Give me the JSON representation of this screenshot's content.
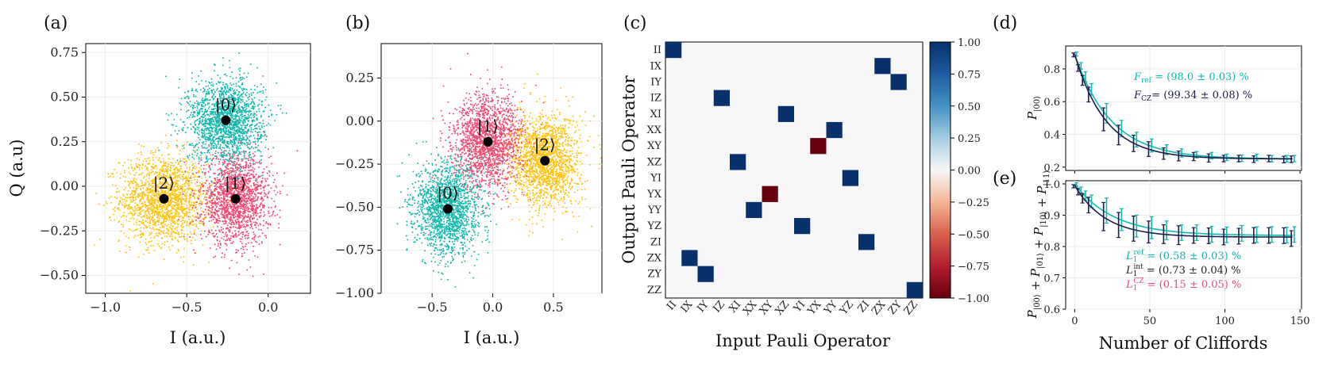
{
  "panel_labels": [
    "(a)",
    "(b)",
    "(c)",
    "(d)",
    "(e)"
  ],
  "colors": {
    "state0": "#12b8ad",
    "state1": "#ef4a72",
    "state2": "#ffc20e",
    "dark": "#1b1e4b",
    "cmap_pos": "#08306b",
    "cmap_neg": "#67000d",
    "cmap_mid": "#f7f7f7"
  },
  "chart_data": [
    {
      "id": "a",
      "type": "scatter",
      "title": "(a)",
      "xlabel": "I (a.u.)",
      "ylabel": "Q (a.u)",
      "xlim": [
        -1.12,
        0.26
      ],
      "ylim": [
        -0.6,
        0.8
      ],
      "xticks": [
        -1.0,
        -0.5,
        0.0
      ],
      "xtick_labels": [
        "−1.0",
        "−0.5",
        "0.0"
      ],
      "yticks": [
        -0.5,
        -0.25,
        0.0,
        0.25,
        0.5,
        0.75
      ],
      "ytick_labels": [
        "−0.50",
        "−0.25",
        "0.00",
        "0.25",
        "0.50",
        "0.75"
      ],
      "grid": true,
      "clusters": [
        {
          "state": "|2⟩",
          "cx": -0.64,
          "cy": -0.07,
          "sx": 0.14,
          "sy": 0.13,
          "color": "#ffc20e",
          "n": 1800
        },
        {
          "state": "|1⟩",
          "cx": -0.2,
          "cy": -0.07,
          "sx": 0.11,
          "sy": 0.13,
          "color": "#ef4a72",
          "n": 1800
        },
        {
          "state": "|0⟩",
          "cx": -0.26,
          "cy": 0.37,
          "sx": 0.12,
          "sy": 0.12,
          "color": "#12b8ad",
          "n": 1800
        }
      ],
      "centers": [
        {
          "label": "|0⟩",
          "x": -0.26,
          "y": 0.37
        },
        {
          "label": "|1⟩",
          "x": -0.2,
          "y": -0.07
        },
        {
          "label": "|2⟩",
          "x": -0.64,
          "y": -0.07
        }
      ]
    },
    {
      "id": "b",
      "type": "scatter",
      "title": "(b)",
      "xlabel": "I (a.u.)",
      "ylabel": "",
      "xlim": [
        -0.92,
        0.9
      ],
      "ylim": [
        -1.0,
        0.45
      ],
      "xticks": [
        -0.5,
        0.0,
        0.5
      ],
      "xtick_labels": [
        "−0.5",
        "0.0",
        "0.5"
      ],
      "yticks": [
        -1.0,
        -0.75,
        -0.5,
        -0.25,
        0.0,
        0.25
      ],
      "ytick_labels": [
        "−1.00",
        "−0.75",
        "−0.50",
        "−0.25",
        "0.00",
        "0.25"
      ],
      "grid": true,
      "clusters": [
        {
          "state": "|2⟩",
          "cx": 0.43,
          "cy": -0.23,
          "sx": 0.15,
          "sy": 0.14,
          "color": "#ffc20e",
          "n": 1800
        },
        {
          "state": "|1⟩",
          "cx": -0.04,
          "cy": -0.12,
          "sx": 0.15,
          "sy": 0.14,
          "color": "#ef4a72",
          "n": 1800
        },
        {
          "state": "|0⟩",
          "cx": -0.37,
          "cy": -0.51,
          "sx": 0.14,
          "sy": 0.14,
          "color": "#12b8ad",
          "n": 1800
        }
      ],
      "centers": [
        {
          "label": "|0⟩",
          "x": -0.37,
          "y": -0.51
        },
        {
          "label": "|1⟩",
          "x": -0.04,
          "y": -0.12
        },
        {
          "label": "|2⟩",
          "x": 0.43,
          "y": -0.23
        }
      ]
    },
    {
      "id": "c",
      "type": "heatmap",
      "title": "(c)",
      "xlabel": "Input Pauli Operator",
      "ylabel": "Output Pauli Operator",
      "rows": [
        "II",
        "IX",
        "IY",
        "IZ",
        "XI",
        "XX",
        "XY",
        "XZ",
        "YI",
        "YX",
        "YY",
        "YZ",
        "ZI",
        "ZX",
        "ZY",
        "ZZ"
      ],
      "cols": [
        "II",
        "IX",
        "IY",
        "IZ",
        "XI",
        "XX",
        "XY",
        "XZ",
        "YI",
        "YX",
        "YY",
        "YZ",
        "ZI",
        "ZX",
        "ZY",
        "ZZ"
      ],
      "nonzero": [
        {
          "row": "II",
          "col": "II",
          "value": 1.0
        },
        {
          "row": "IX",
          "col": "ZX",
          "value": 1.0
        },
        {
          "row": "IY",
          "col": "ZY",
          "value": 1.0
        },
        {
          "row": "IZ",
          "col": "IZ",
          "value": 1.0
        },
        {
          "row": "XI",
          "col": "XZ",
          "value": 1.0
        },
        {
          "row": "XX",
          "col": "YY",
          "value": 1.0
        },
        {
          "row": "XY",
          "col": "YX",
          "value": -1.0
        },
        {
          "row": "XZ",
          "col": "XI",
          "value": 1.0
        },
        {
          "row": "YI",
          "col": "YZ",
          "value": 1.0
        },
        {
          "row": "YX",
          "col": "XY",
          "value": -1.0
        },
        {
          "row": "YY",
          "col": "XX",
          "value": 1.0
        },
        {
          "row": "YZ",
          "col": "YI",
          "value": 1.0
        },
        {
          "row": "ZI",
          "col": "ZI",
          "value": 1.0
        },
        {
          "row": "ZX",
          "col": "IX",
          "value": 1.0
        },
        {
          "row": "ZY",
          "col": "IY",
          "value": 1.0
        },
        {
          "row": "ZZ",
          "col": "ZZ",
          "value": 1.0
        }
      ],
      "colorbar_ticks": [
        1.0,
        0.75,
        0.5,
        0.25,
        0.0,
        -0.25,
        -0.5,
        -0.75,
        -1.0
      ],
      "colorbar_tick_labels": [
        "1.00",
        "0.75",
        "0.50",
        "0.25",
        "0.00",
        "−0.25",
        "−0.50",
        "−0.75",
        "−1.00"
      ],
      "colorbar_range": [
        -1.0,
        1.0
      ]
    },
    {
      "id": "d",
      "type": "line",
      "title": "(d)",
      "xlabel": "",
      "ylabel": "P|00⟩",
      "xlim": [
        -6,
        151
      ],
      "ylim": [
        0.18,
        0.94
      ],
      "yticks": [
        0.2,
        0.4,
        0.6,
        0.8
      ],
      "ytick_labels": [
        "0.2",
        "0.4",
        "0.6",
        "0.8"
      ],
      "xticks": [
        0,
        50,
        100,
        150
      ],
      "series": [
        {
          "name": "ref",
          "color": "#12b8ad",
          "A": 0.64,
          "p": 0.9594,
          "B": 0.25,
          "x": [
            0,
            3,
            6,
            10,
            20,
            30,
            40,
            50,
            60,
            70,
            80,
            90,
            100,
            110,
            120,
            130,
            140,
            145
          ],
          "err": [
            0.012,
            0.02,
            0.03,
            0.035,
            0.06,
            0.05,
            0.045,
            0.04,
            0.03,
            0.025,
            0.02,
            0.02,
            0.02,
            0.02,
            0.02,
            0.02,
            0.02,
            0.02
          ]
        },
        {
          "name": "CZ",
          "color": "#1b1e4b",
          "A": 0.64,
          "p": 0.9529,
          "B": 0.25,
          "x": [
            0,
            3,
            6,
            10,
            20,
            30,
            40,
            50,
            60,
            70,
            80,
            90,
            100,
            110,
            120,
            130,
            140,
            145
          ],
          "err": [
            0.012,
            0.02,
            0.03,
            0.045,
            0.07,
            0.06,
            0.05,
            0.045,
            0.035,
            0.03,
            0.025,
            0.025,
            0.02,
            0.02,
            0.02,
            0.02,
            0.02,
            0.02
          ]
        }
      ],
      "annotations": [
        {
          "text": "F_ref = (98.0 ± 0.03) %",
          "color": "#12b8ad"
        },
        {
          "text": "F_CZ = (99.34 ± 0.08) %",
          "color": "#1b1e4b"
        }
      ]
    },
    {
      "id": "e",
      "type": "line",
      "title": "(e)",
      "xlabel": "Number of Cliffords",
      "ylabel": "P|00⟩ + P|01⟩ + P|10⟩ + P|11⟩",
      "xlim": [
        -6,
        151
      ],
      "ylim": [
        0.6,
        1.01
      ],
      "yticks": [
        0.6,
        0.7,
        0.8,
        0.9,
        1.0
      ],
      "ytick_labels": [
        "0.6",
        "0.7",
        "0.8",
        "0.9",
        "1.0"
      ],
      "xticks": [
        0,
        50,
        100,
        150
      ],
      "xtick_labels": [
        "0",
        "50",
        "100",
        "150"
      ],
      "series": [
        {
          "name": "ref",
          "color": "#12b8ad",
          "A": 0.165,
          "p": 0.962,
          "B": 0.835,
          "x": [
            0,
            3,
            6,
            10,
            20,
            30,
            40,
            50,
            60,
            70,
            80,
            90,
            100,
            110,
            120,
            130,
            140,
            145
          ],
          "err": [
            0.005,
            0.01,
            0.015,
            0.02,
            0.04,
            0.035,
            0.035,
            0.035,
            0.03,
            0.025,
            0.025,
            0.025,
            0.025,
            0.025,
            0.025,
            0.025,
            0.025,
            0.025
          ]
        },
        {
          "name": "CZ",
          "color": "#1b1e4b",
          "A": 0.165,
          "p": 0.952,
          "B": 0.83,
          "x": [
            0,
            3,
            6,
            10,
            20,
            30,
            40,
            50,
            60,
            70,
            80,
            90,
            100,
            110,
            120,
            130,
            140,
            145
          ],
          "err": [
            0.005,
            0.01,
            0.015,
            0.025,
            0.045,
            0.04,
            0.04,
            0.035,
            0.03,
            0.03,
            0.025,
            0.025,
            0.025,
            0.025,
            0.025,
            0.025,
            0.025,
            0.025
          ]
        }
      ],
      "annotations": [
        {
          "text": "L1^ref = (0.58 ± 0.03) %",
          "color": "#12b8ad"
        },
        {
          "text": "L1^int = (0.73 ± 0.04) %",
          "color": "#222222"
        },
        {
          "text": "L1^CZ = (0.15 ± 0.05) %",
          "color": "#ef4a72"
        }
      ]
    }
  ],
  "annotation_parts": {
    "d": [
      {
        "main": "F",
        "sub": "ref",
        "rest": " = (98.0 ± 0.03) %"
      },
      {
        "main": "F",
        "sub": "CZ",
        "rest": "= (99.34 ± 0.08) %"
      }
    ],
    "e": [
      {
        "main": "L",
        "sub": "1",
        "sup": "ref",
        "rest": " = (0.58 ± 0.03) %"
      },
      {
        "main": "L",
        "sub": "1",
        "sup": "int",
        "rest": " = (0.73 ± 0.04) %"
      },
      {
        "main": "L",
        "sub": "1",
        "sup": "CZ",
        "rest": " = (0.15 ± 0.05) %"
      }
    ]
  },
  "ylabel_parts": {
    "d": [
      {
        "main": "P",
        "sub": "|00⟩"
      }
    ],
    "e": [
      {
        "main": "P",
        "sub": "|00⟩"
      },
      {
        "plus": " + "
      },
      {
        "main": "P",
        "sub": "|01⟩"
      },
      {
        "plus": " + "
      },
      {
        "main": "P",
        "sub": "|10⟩"
      },
      {
        "plus": " + "
      },
      {
        "main": "P",
        "sub": "|11⟩"
      }
    ]
  }
}
